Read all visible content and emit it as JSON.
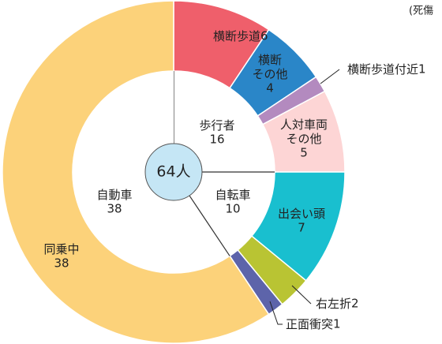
{
  "note": "(死傷",
  "chart_data": {
    "type": "donut",
    "total_label": "64人",
    "categories": [
      "横断歩道",
      "横断\nその他",
      "横断歩道付近",
      "人対車両\nその他",
      "出会い頭",
      "右左折",
      "正面衝突",
      "同乗中"
    ],
    "values": [
      6,
      4,
      1,
      5,
      7,
      2,
      1,
      38
    ],
    "colors": [
      "#ef5f6b",
      "#2a86c8",
      "#b38abf",
      "#fdd5d5",
      "#19bfcf",
      "#b9c433",
      "#5d64aa",
      "#fcd27a"
    ],
    "inner": {
      "categories": [
        "歩行者",
        "自転車",
        "自動車"
      ],
      "values": [
        16,
        10,
        38
      ]
    }
  }
}
